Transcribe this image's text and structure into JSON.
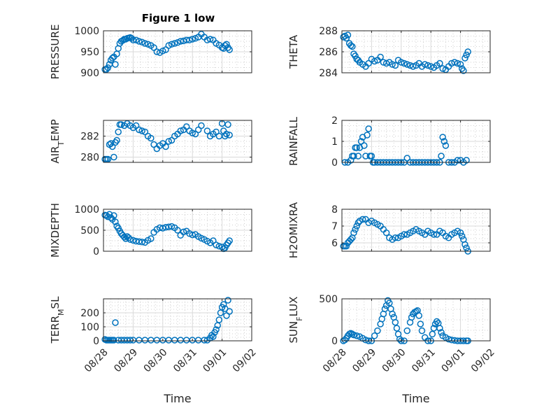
{
  "figure": {
    "title": "Figure 1 low",
    "marker_color": "#0072BD",
    "x_ticks": [
      "08/28",
      "08/29",
      "08/30",
      "08/31",
      "09/01",
      "09/02"
    ]
  },
  "chart_data": [
    {
      "type": "scatter",
      "ylabel": "PRESSURE",
      "title": "Figure 1 low",
      "xlabel": "",
      "xlim": [
        0,
        5
      ],
      "ylim": [
        900,
        1000
      ],
      "yticks": [
        900,
        950,
        1000
      ],
      "grid": true,
      "x": [
        0.05,
        0.1,
        0.15,
        0.2,
        0.25,
        0.3,
        0.35,
        0.4,
        0.45,
        0.5,
        0.55,
        0.6,
        0.65,
        0.7,
        0.75,
        0.8,
        0.85,
        0.9,
        0.95,
        1.0,
        1.1,
        1.2,
        1.3,
        1.4,
        1.5,
        1.6,
        1.7,
        1.8,
        1.9,
        2.0,
        2.1,
        2.2,
        2.3,
        2.4,
        2.5,
        2.6,
        2.7,
        2.8,
        2.9,
        3.0,
        3.1,
        3.2,
        3.3,
        3.4,
        3.5,
        3.6,
        3.7,
        3.8,
        3.9,
        4.0,
        4.05,
        4.1,
        4.15,
        4.2,
        4.25
      ],
      "y": [
        908,
        908,
        912,
        920,
        930,
        935,
        938,
        920,
        945,
        958,
        970,
        975,
        977,
        980,
        980,
        982,
        983,
        984,
        982,
        978,
        978,
        975,
        973,
        970,
        968,
        965,
        960,
        950,
        948,
        952,
        955,
        965,
        968,
        970,
        972,
        975,
        976,
        978,
        978,
        980,
        982,
        985,
        992,
        985,
        978,
        980,
        978,
        970,
        966,
        960,
        958,
        965,
        968,
        960,
        955
      ]
    },
    {
      "type": "scatter",
      "ylabel": "THETA",
      "xlabel": "",
      "xlim": [
        0,
        5
      ],
      "ylim": [
        284,
        288
      ],
      "yticks": [
        284,
        286,
        288
      ],
      "grid": true,
      "x": [
        0.05,
        0.1,
        0.15,
        0.2,
        0.25,
        0.3,
        0.35,
        0.4,
        0.45,
        0.5,
        0.55,
        0.6,
        0.7,
        0.8,
        0.9,
        1.0,
        1.1,
        1.2,
        1.3,
        1.4,
        1.5,
        1.6,
        1.7,
        1.8,
        1.9,
        2.0,
        2.1,
        2.2,
        2.3,
        2.4,
        2.5,
        2.6,
        2.7,
        2.8,
        2.9,
        3.0,
        3.1,
        3.2,
        3.3,
        3.4,
        3.5,
        3.6,
        3.7,
        3.8,
        3.9,
        4.0,
        4.05,
        4.1,
        4.15,
        4.2,
        4.25
      ],
      "y": [
        287.4,
        287.5,
        287.3,
        287.6,
        286.8,
        286.6,
        286.5,
        285.8,
        285.6,
        285.3,
        285.2,
        285.0,
        284.8,
        284.6,
        284.9,
        285.3,
        285.1,
        285.2,
        285.5,
        285.0,
        284.9,
        285.0,
        284.8,
        284.7,
        285.2,
        285.0,
        284.9,
        284.8,
        284.7,
        284.6,
        284.7,
        284.9,
        284.6,
        284.8,
        284.7,
        284.6,
        284.5,
        284.7,
        284.9,
        284.4,
        284.3,
        284.6,
        284.9,
        285.0,
        284.9,
        284.8,
        284.4,
        284.2,
        285.4,
        285.7,
        286.0
      ]
    },
    {
      "type": "scatter",
      "ylabel": "AIR_TEMP",
      "xlabel": "",
      "xlim": [
        0,
        5
      ],
      "ylim": [
        279.5,
        283.5
      ],
      "yticks": [
        280,
        282
      ],
      "grid": true,
      "x": [
        0.05,
        0.1,
        0.15,
        0.2,
        0.25,
        0.3,
        0.35,
        0.4,
        0.45,
        0.5,
        0.55,
        0.6,
        0.7,
        0.8,
        0.9,
        1.0,
        1.1,
        1.2,
        1.3,
        1.4,
        1.5,
        1.6,
        1.7,
        1.8,
        1.9,
        2.0,
        2.1,
        2.2,
        2.3,
        2.4,
        2.5,
        2.6,
        2.7,
        2.8,
        2.9,
        3.0,
        3.1,
        3.2,
        3.3,
        3.4,
        3.5,
        3.6,
        3.7,
        3.8,
        3.9,
        4.0,
        4.05,
        4.1,
        4.15,
        4.2,
        4.25
      ],
      "y": [
        279.8,
        279.8,
        279.8,
        281.2,
        281.3,
        281.0,
        280.0,
        281.4,
        281.6,
        282.4,
        283.1,
        283.1,
        283.0,
        283.2,
        283.0,
        282.8,
        283.0,
        282.6,
        282.5,
        282.4,
        282.0,
        281.8,
        281.2,
        280.8,
        281.1,
        281.3,
        281.0,
        281.5,
        281.6,
        282.0,
        282.2,
        282.5,
        282.6,
        282.9,
        282.5,
        282.3,
        282.2,
        282.6,
        283.0,
        283.6,
        282.5,
        282.0,
        282.2,
        282.4,
        282.0,
        283.2,
        282.5,
        282.0,
        282.2,
        283.1,
        282.1
      ]
    },
    {
      "type": "scatter",
      "ylabel": "RAINFALL",
      "xlabel": "",
      "xlim": [
        0,
        5
      ],
      "ylim": [
        0,
        2
      ],
      "yticks": [
        0,
        1,
        2
      ],
      "grid": true,
      "x": [
        0.1,
        0.2,
        0.3,
        0.35,
        0.4,
        0.45,
        0.5,
        0.55,
        0.6,
        0.65,
        0.7,
        0.75,
        0.8,
        0.85,
        0.9,
        0.95,
        1.0,
        1.05,
        1.1,
        1.2,
        1.3,
        1.4,
        1.5,
        1.6,
        1.7,
        1.8,
        1.9,
        2.0,
        2.1,
        2.2,
        2.3,
        2.4,
        2.5,
        2.6,
        2.7,
        2.8,
        2.9,
        3.0,
        3.1,
        3.2,
        3.3,
        3.35,
        3.4,
        3.45,
        3.5,
        3.6,
        3.7,
        3.8,
        3.9,
        4.0,
        4.1,
        4.2
      ],
      "y": [
        0,
        0,
        0.1,
        0.3,
        0.3,
        0.7,
        0.7,
        0.3,
        0.7,
        1.0,
        1.2,
        0.8,
        0.3,
        1.3,
        1.6,
        0.3,
        0.3,
        0,
        0,
        0,
        0,
        0,
        0,
        0,
        0,
        0,
        0,
        0,
        0,
        0.2,
        0,
        0,
        0,
        0,
        0,
        0,
        0,
        0,
        0,
        0,
        0,
        0.3,
        1.2,
        1.0,
        0.8,
        0,
        0,
        0,
        0.1,
        0.1,
        0,
        0.1
      ]
    },
    {
      "type": "scatter",
      "ylabel": "MIXDEPTH",
      "xlabel": "",
      "xlim": [
        0,
        5
      ],
      "ylim": [
        0,
        1000
      ],
      "yticks": [
        0,
        500,
        1000
      ],
      "grid": true,
      "x": [
        0.05,
        0.1,
        0.15,
        0.2,
        0.25,
        0.3,
        0.35,
        0.4,
        0.45,
        0.5,
        0.55,
        0.6,
        0.65,
        0.7,
        0.75,
        0.8,
        0.85,
        0.9,
        1.0,
        1.1,
        1.2,
        1.3,
        1.4,
        1.5,
        1.6,
        1.7,
        1.8,
        1.9,
        2.0,
        2.1,
        2.2,
        2.3,
        2.4,
        2.5,
        2.6,
        2.7,
        2.8,
        2.9,
        3.0,
        3.1,
        3.2,
        3.3,
        3.4,
        3.5,
        3.6,
        3.7,
        3.8,
        3.9,
        4.0,
        4.05,
        4.1,
        4.15,
        4.2,
        4.25
      ],
      "y": [
        860,
        850,
        820,
        880,
        800,
        760,
        850,
        700,
        600,
        550,
        480,
        420,
        380,
        340,
        300,
        350,
        320,
        280,
        260,
        240,
        230,
        220,
        210,
        260,
        300,
        450,
        520,
        560,
        550,
        570,
        580,
        590,
        560,
        500,
        380,
        460,
        480,
        420,
        390,
        400,
        350,
        310,
        280,
        240,
        200,
        250,
        150,
        120,
        100,
        60,
        80,
        150,
        200,
        250
      ]
    },
    {
      "type": "scatter",
      "ylabel": "H2OMIXRA",
      "xlabel": "",
      "xlim": [
        0,
        5
      ],
      "ylim": [
        5.5,
        8
      ],
      "yticks": [
        6,
        7,
        8
      ],
      "grid": true,
      "x": [
        0.05,
        0.1,
        0.15,
        0.2,
        0.25,
        0.3,
        0.35,
        0.4,
        0.45,
        0.5,
        0.55,
        0.6,
        0.7,
        0.8,
        0.9,
        1.0,
        1.1,
        1.2,
        1.3,
        1.4,
        1.5,
        1.6,
        1.7,
        1.8,
        1.9,
        2.0,
        2.1,
        2.2,
        2.3,
        2.4,
        2.5,
        2.6,
        2.7,
        2.8,
        2.9,
        3.0,
        3.1,
        3.2,
        3.3,
        3.4,
        3.5,
        3.6,
        3.7,
        3.8,
        3.9,
        4.0,
        4.05,
        4.1,
        4.15,
        4.2,
        4.25
      ],
      "y": [
        5.8,
        5.8,
        5.8,
        6.0,
        6.1,
        6.2,
        6.3,
        6.6,
        6.8,
        7.0,
        7.2,
        7.3,
        7.4,
        7.4,
        7.2,
        7.3,
        7.2,
        7.1,
        7.0,
        6.8,
        6.6,
        6.3,
        6.2,
        6.3,
        6.3,
        6.4,
        6.5,
        6.5,
        6.6,
        6.7,
        6.8,
        6.7,
        6.6,
        6.5,
        6.7,
        6.6,
        6.5,
        6.5,
        6.7,
        6.6,
        6.4,
        6.3,
        6.5,
        6.6,
        6.7,
        6.6,
        6.4,
        6.2,
        5.9,
        5.7,
        5.5
      ]
    },
    {
      "type": "scatter",
      "ylabel": "TERR_MSL",
      "xlabel": "Time",
      "xlim": [
        0,
        5
      ],
      "ylim": [
        0,
        300
      ],
      "yticks": [
        0,
        100,
        200
      ],
      "grid": true,
      "x": [
        0.05,
        0.1,
        0.15,
        0.2,
        0.25,
        0.3,
        0.35,
        0.4,
        0.5,
        0.6,
        0.7,
        0.8,
        0.9,
        1.0,
        1.2,
        1.4,
        1.6,
        1.8,
        2.0,
        2.2,
        2.4,
        2.6,
        2.8,
        3.0,
        3.2,
        3.4,
        3.5,
        3.6,
        3.65,
        3.7,
        3.75,
        3.8,
        3.85,
        3.9,
        3.95,
        4.0,
        4.05,
        4.1,
        4.15,
        4.2,
        4.25
      ],
      "y": [
        10,
        5,
        5,
        5,
        5,
        5,
        5,
        130,
        5,
        5,
        5,
        5,
        5,
        5,
        5,
        5,
        5,
        5,
        5,
        5,
        5,
        5,
        5,
        5,
        5,
        5,
        5,
        20,
        40,
        30,
        60,
        80,
        110,
        150,
        200,
        240,
        260,
        230,
        180,
        290,
        210
      ]
    },
    {
      "type": "scatter",
      "ylabel": "SUN_FLUX",
      "xlabel": "Time",
      "xlim": [
        0,
        5
      ],
      "ylim": [
        0,
        500
      ],
      "yticks": [
        0,
        500
      ],
      "grid": true,
      "x": [
        0.05,
        0.1,
        0.15,
        0.2,
        0.25,
        0.3,
        0.35,
        0.4,
        0.5,
        0.6,
        0.7,
        0.8,
        0.9,
        1.0,
        1.1,
        1.2,
        1.3,
        1.35,
        1.4,
        1.45,
        1.5,
        1.55,
        1.6,
        1.65,
        1.7,
        1.75,
        1.8,
        1.85,
        1.9,
        1.95,
        2.0,
        2.1,
        2.2,
        2.3,
        2.35,
        2.4,
        2.45,
        2.5,
        2.55,
        2.6,
        2.65,
        2.7,
        2.8,
        2.9,
        3.0,
        3.05,
        3.1,
        3.15,
        3.2,
        3.25,
        3.3,
        3.35,
        3.4,
        3.5,
        3.6,
        3.7,
        3.8,
        3.9,
        4.0,
        4.1,
        4.2,
        4.25
      ],
      "y": [
        0,
        10,
        30,
        60,
        80,
        90,
        80,
        70,
        60,
        50,
        30,
        10,
        0,
        0,
        60,
        120,
        200,
        260,
        320,
        380,
        420,
        480,
        450,
        380,
        320,
        280,
        220,
        150,
        80,
        20,
        0,
        0,
        120,
        220,
        280,
        320,
        340,
        350,
        360,
        300,
        200,
        120,
        40,
        0,
        0,
        80,
        150,
        200,
        230,
        210,
        150,
        100,
        60,
        40,
        20,
        10,
        5,
        0,
        0,
        0,
        0,
        0
      ]
    }
  ]
}
